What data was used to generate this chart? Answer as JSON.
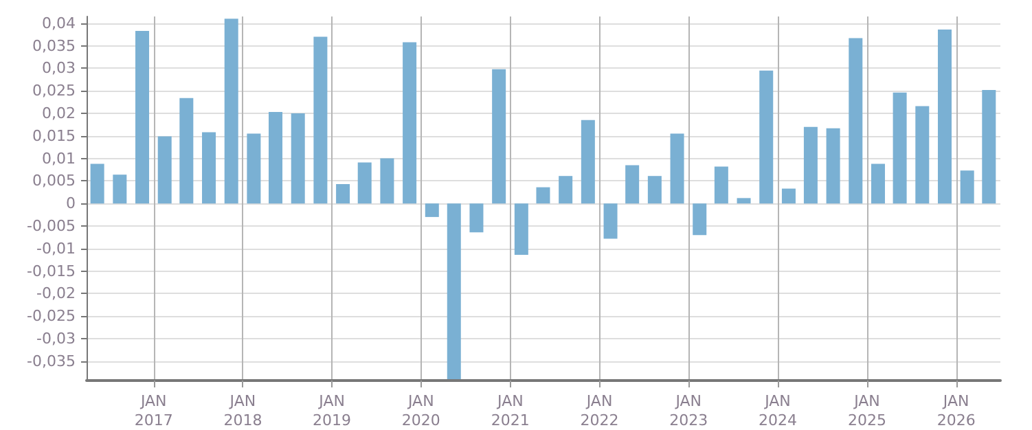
{
  "chart_data": {
    "type": "bar",
    "color": "#7ab0d3",
    "grid": true,
    "x": [
      "2016-05-15",
      "2016-08-15",
      "2016-11-15",
      "2017-02-15",
      "2017-05-15",
      "2017-08-15",
      "2017-11-15",
      "2018-02-15",
      "2018-05-15",
      "2018-08-15",
      "2018-11-15",
      "2019-02-15",
      "2019-05-15",
      "2019-08-15",
      "2019-11-15",
      "2020-02-15",
      "2020-05-15",
      "2020-08-15",
      "2020-11-15",
      "2021-02-15",
      "2021-05-15",
      "2021-08-15",
      "2021-11-15",
      "2022-02-15",
      "2022-05-15",
      "2022-08-15",
      "2022-11-15",
      "2023-02-15",
      "2023-05-15",
      "2023-08-15",
      "2023-11-15",
      "2024-02-15",
      "2024-05-15",
      "2024-08-15",
      "2024-11-15",
      "2025-02-15",
      "2025-05-15",
      "2025-08-15",
      "2025-11-15",
      "2026-02-15",
      "2026-05-15"
    ],
    "values": [
      0.0088,
      0.0064,
      0.0383,
      0.0149,
      0.0234,
      0.0158,
      0.041,
      0.0155,
      0.0203,
      0.02,
      0.037,
      0.0043,
      0.0091,
      0.01,
      0.0358,
      -0.003,
      -0.039,
      -0.0064,
      0.0298,
      -0.0114,
      0.0036,
      0.0061,
      0.0185,
      -0.0078,
      0.0085,
      0.0061,
      0.0155,
      -0.007,
      0.0082,
      0.0012,
      0.0295,
      0.0033,
      0.017,
      0.0167,
      0.0367,
      0.0088,
      0.0246,
      0.0216,
      0.0386,
      0.0073,
      0.0252
    ],
    "xlim": [
      "2016-04-01",
      "2026-07-01"
    ],
    "xticks": [
      {
        "value": "2017-01-01",
        "label": "JAN\n2017"
      },
      {
        "value": "2018-01-01",
        "label": "JAN\n2018"
      },
      {
        "value": "2019-01-01",
        "label": "JAN\n2019"
      },
      {
        "value": "2020-01-01",
        "label": "JAN\n2020"
      },
      {
        "value": "2021-01-01",
        "label": "JAN\n2021"
      },
      {
        "value": "2022-01-01",
        "label": "JAN\n2022"
      },
      {
        "value": "2023-01-01",
        "label": "JAN\n2023"
      },
      {
        "value": "2024-01-01",
        "label": "JAN\n2024"
      },
      {
        "value": "2025-01-01",
        "label": "JAN\n2025"
      },
      {
        "value": "2026-01-01",
        "label": "JAN\n2026"
      }
    ],
    "ylim": [
      -0.0393,
      0.0415
    ],
    "yticks": [
      {
        "value": -0.035,
        "label": "-0,035"
      },
      {
        "value": -0.03,
        "label": "-0,03"
      },
      {
        "value": -0.025,
        "label": "-0,025"
      },
      {
        "value": -0.02,
        "label": "-0,02"
      },
      {
        "value": -0.015,
        "label": "-0,015"
      },
      {
        "value": -0.01,
        "label": "-0,01"
      },
      {
        "value": -0.005,
        "label": "-0,005"
      },
      {
        "value": 0,
        "label": "0"
      },
      {
        "value": 0.005,
        "label": "0,005"
      },
      {
        "value": 0.01,
        "label": "0,01"
      },
      {
        "value": 0.015,
        "label": "0,015"
      },
      {
        "value": 0.02,
        "label": "0,02"
      },
      {
        "value": 0.025,
        "label": "0,025"
      },
      {
        "value": 0.03,
        "label": "0,03"
      },
      {
        "value": 0.035,
        "label": "0,035"
      },
      {
        "value": 0.04,
        "label": "0,04"
      }
    ]
  }
}
